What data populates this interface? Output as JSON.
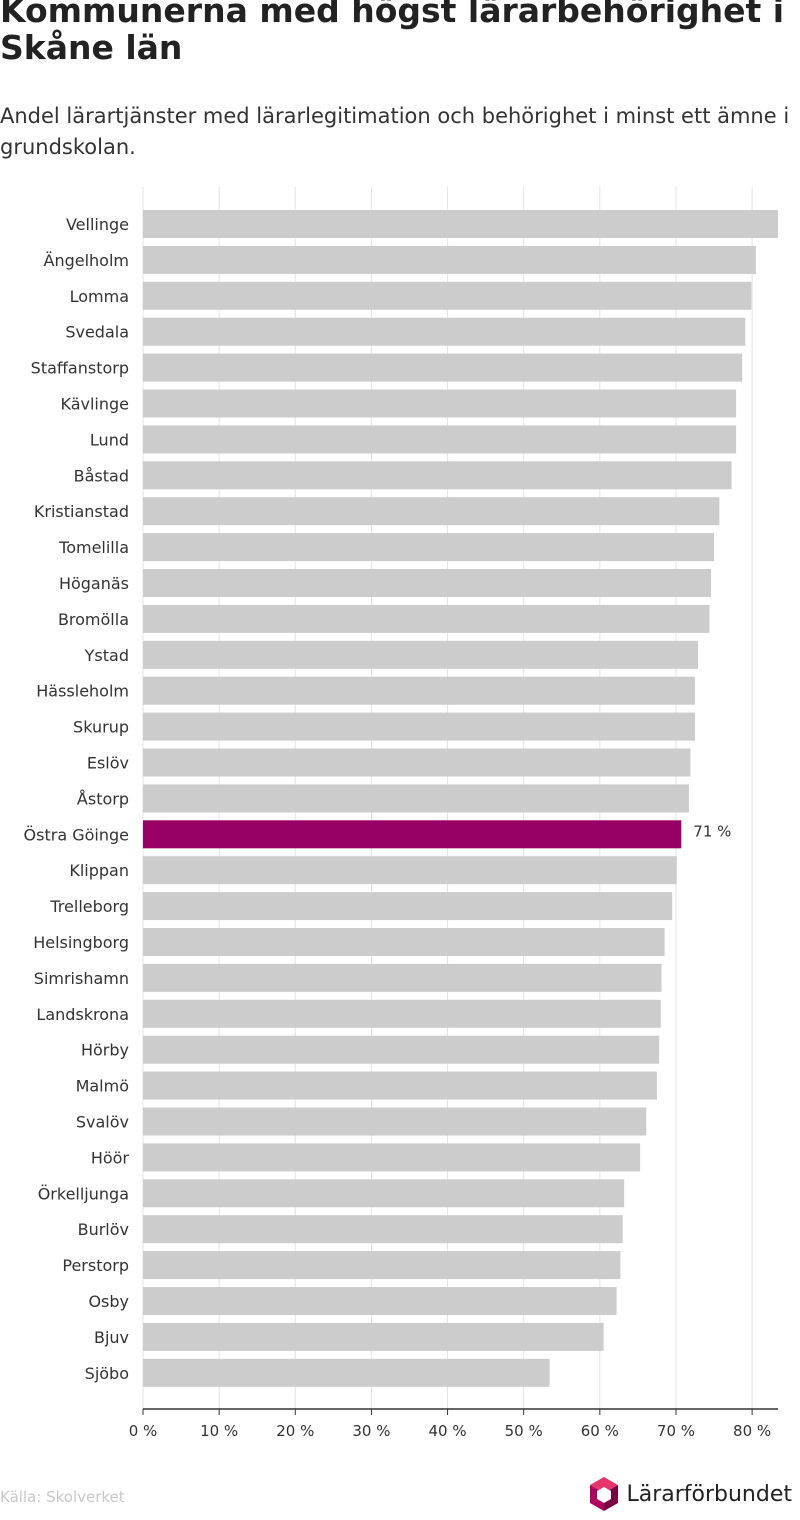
{
  "title": "Kommunerna med högst lärarbehörighet i Skåne län",
  "subtitle": "Andel lärartjänster med lärarlegitimation och behörighet i minst ett ämne i grundskolan.",
  "source": "Källa: Skolverket",
  "brand": {
    "name": "Lärarförbundet",
    "icon": "hexagon-logo-icon"
  },
  "colors": {
    "bar": "#cccccc",
    "highlight": "#990066",
    "grid": "#e3e3e3",
    "axis": "#333333"
  },
  "chart_data": {
    "type": "bar",
    "orientation": "horizontal",
    "categories": [
      "Vellinge",
      "Ängelholm",
      "Lomma",
      "Svedala",
      "Staffanstorp",
      "Kävlinge",
      "Lund",
      "Båstad",
      "Kristianstad",
      "Tomelilla",
      "Höganäs",
      "Bromölla",
      "Ystad",
      "Hässleholm",
      "Skurup",
      "Eslöv",
      "Åstorp",
      "Östra Göinge",
      "Klippan",
      "Trelleborg",
      "Helsingborg",
      "Simrishamn",
      "Landskrona",
      "Hörby",
      "Malmö",
      "Svalöv",
      "Höör",
      "Örkelljunga",
      "Burlöv",
      "Perstorp",
      "Osby",
      "Bjuv",
      "Sjöbo"
    ],
    "values": [
      83.4,
      80.5,
      79.9,
      79.1,
      78.7,
      77.9,
      77.9,
      77.3,
      75.7,
      75.0,
      74.6,
      74.4,
      72.9,
      72.5,
      72.5,
      71.9,
      71.7,
      70.7,
      70.1,
      69.5,
      68.5,
      68.1,
      68.0,
      67.8,
      67.5,
      66.1,
      65.3,
      63.2,
      63.0,
      62.7,
      62.2,
      60.5,
      53.4
    ],
    "highlight": "Östra Göinge",
    "data_labels": [
      {
        "category": "Östra Göinge",
        "text": "71 %"
      }
    ],
    "xlim": [
      0,
      83.4
    ],
    "ticks": [
      0,
      10,
      20,
      30,
      40,
      50,
      60,
      70,
      80
    ],
    "tick_labels": [
      "0 %",
      "10 %",
      "20 %",
      "30 %",
      "40 %",
      "50 %",
      "60 %",
      "70 %",
      "80 %"
    ],
    "xlabel": "",
    "ylabel": "",
    "grid": true
  }
}
